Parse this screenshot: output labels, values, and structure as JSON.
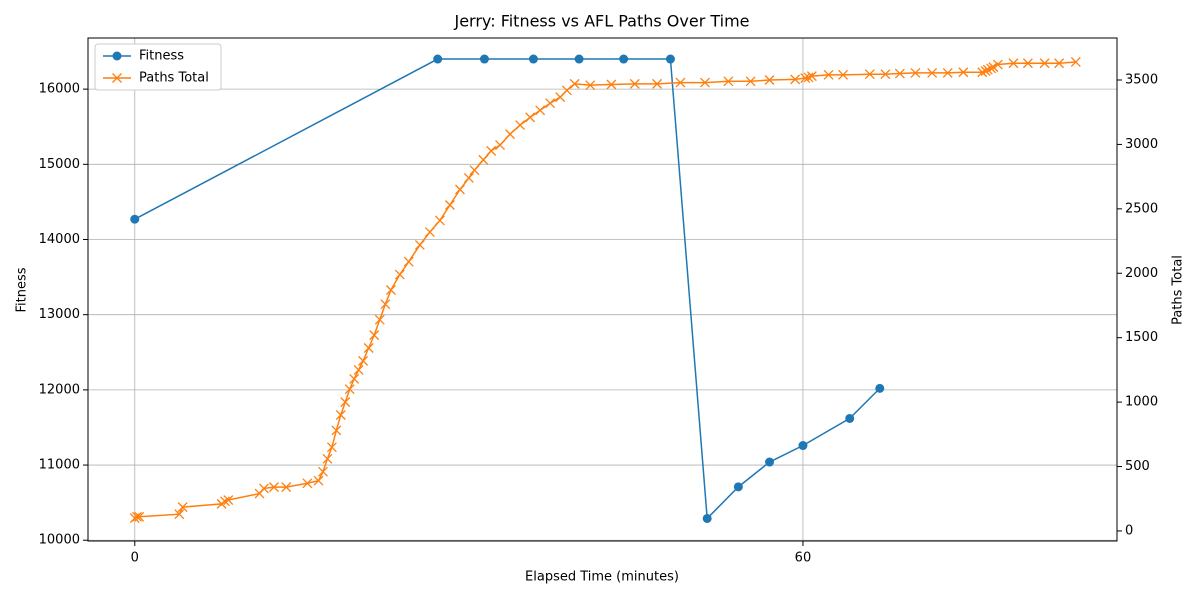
{
  "chart_data": {
    "type": "line",
    "title": "Jerry: Fitness vs AFL Paths Over Time",
    "xlabel": "Elapsed Time (minutes)",
    "ylabel": "Fitness",
    "y2label": "Paths Total",
    "xlim": [
      -4.2,
      88.2
    ],
    "xticks": [
      0,
      60
    ],
    "ylim": [
      9990,
      16680
    ],
    "yticks": [
      10000,
      11000,
      12000,
      13000,
      14000,
      15000,
      16000
    ],
    "y2lim": [
      -78,
      3826
    ],
    "y2ticks": [
      0,
      500,
      1000,
      1500,
      2000,
      2500,
      3000,
      3500
    ],
    "grid": true,
    "legend": "upper left",
    "series": [
      {
        "name": "Fitness",
        "color": "#1f77b4",
        "marker": "o",
        "axis": "y",
        "x": [
          0,
          27.2,
          31.4,
          35.8,
          39.9,
          43.9,
          48.1,
          51.4,
          54.2,
          57.0,
          60,
          64.2,
          66.9
        ],
        "values": [
          14270,
          16400,
          16400,
          16400,
          16400,
          16400,
          16400,
          10290,
          10710,
          11040,
          11260,
          11620,
          12020
        ]
      },
      {
        "name": "Paths Total",
        "color": "#ff7f0e",
        "marker": "x",
        "axis": "y2",
        "x": [
          0,
          0.2,
          0.4,
          4,
          4.3,
          7.8,
          8.1,
          8.4,
          11.2,
          11.6,
          12.5,
          13.6,
          15.5,
          16.5,
          16.9,
          17.3,
          17.7,
          18.1,
          18.5,
          18.9,
          19.3,
          19.7,
          20.1,
          20.5,
          21,
          21.5,
          22,
          22.5,
          23,
          23.8,
          24.6,
          25.6,
          26.5,
          27.4,
          28.3,
          29.2,
          30,
          30.5,
          31.3,
          32,
          32.8,
          33.7,
          34.6,
          35.5,
          36.4,
          37.3,
          38.2,
          38.8,
          39.5,
          40.9,
          42.8,
          44.9,
          46.9,
          49,
          51.2,
          53.3,
          55.3,
          57,
          59.3,
          60.2,
          60.5,
          60.8,
          62.3,
          63.6,
          66,
          67.4,
          68.7,
          70.1,
          71.6,
          73,
          74.4,
          76.1,
          76.4,
          76.6,
          76.9,
          77.1,
          77.5,
          78.9,
          80.2,
          81.7,
          83,
          84.5
        ],
        "values": [
          100,
          110,
          110,
          130,
          185,
          210,
          230,
          240,
          290,
          330,
          340,
          340,
          370,
          390,
          460,
          560,
          650,
          780,
          900,
          1000,
          1100,
          1180,
          1250,
          1320,
          1420,
          1520,
          1640,
          1760,
          1870,
          1990,
          2090,
          2220,
          2320,
          2410,
          2530,
          2650,
          2740,
          2800,
          2880,
          2950,
          2995,
          3080,
          3150,
          3210,
          3265,
          3320,
          3367,
          3420,
          3470,
          3460,
          3465,
          3470,
          3470,
          3480,
          3480,
          3490,
          3490,
          3500,
          3505,
          3515,
          3520,
          3530,
          3540,
          3540,
          3545,
          3545,
          3550,
          3555,
          3555,
          3555,
          3560,
          3560,
          3570,
          3580,
          3590,
          3600,
          3620,
          3630,
          3630,
          3630,
          3630,
          3640
        ]
      }
    ]
  }
}
